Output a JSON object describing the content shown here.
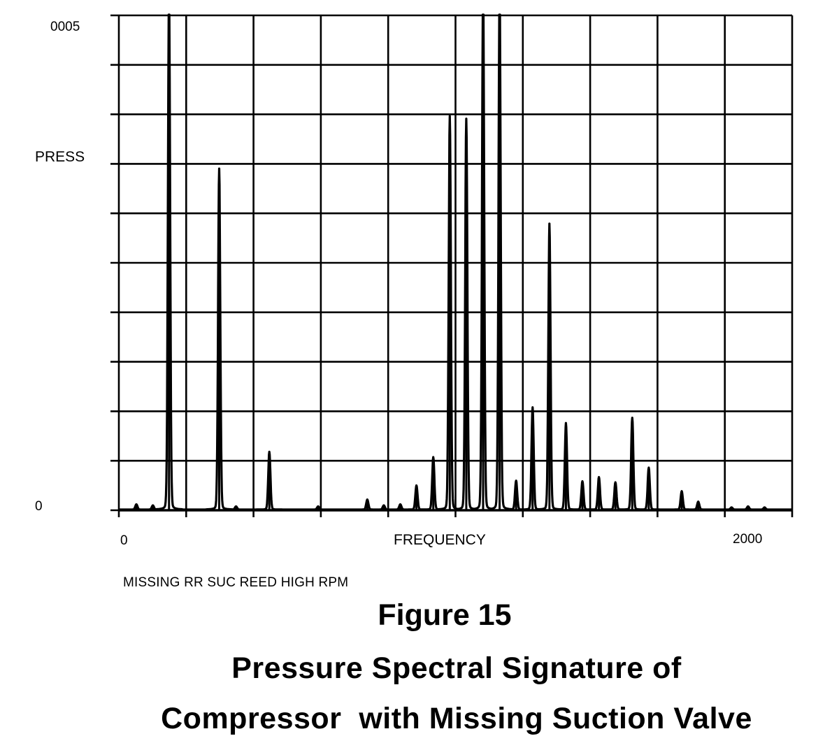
{
  "chart_data": {
    "type": "line",
    "title": "",
    "ylabel": "PRESS",
    "xlabel": "FREQUENCY",
    "x_tick_labels": {
      "min": "0",
      "max": "2000"
    },
    "y_tick_labels": {
      "min": "0",
      "max": "0005"
    },
    "xlim": [
      0,
      2000
    ],
    "ylim": [
      0,
      1
    ],
    "grid": true,
    "peaks": [
      {
        "x": 52,
        "y": 0.01
      },
      {
        "x": 101,
        "y": 0.008
      },
      {
        "x": 149,
        "y": 1.0
      },
      {
        "x": 298,
        "y": 0.65
      },
      {
        "x": 348,
        "y": 0.006
      },
      {
        "x": 447,
        "y": 0.11
      },
      {
        "x": 592,
        "y": 0.006
      },
      {
        "x": 738,
        "y": 0.019
      },
      {
        "x": 787,
        "y": 0.008
      },
      {
        "x": 836,
        "y": 0.01
      },
      {
        "x": 884,
        "y": 0.046
      },
      {
        "x": 934,
        "y": 0.1
      },
      {
        "x": 983,
        "y": 0.75
      },
      {
        "x": 1032,
        "y": 0.745
      },
      {
        "x": 1082,
        "y": 1.0
      },
      {
        "x": 1131,
        "y": 1.0
      },
      {
        "x": 1180,
        "y": 0.055
      },
      {
        "x": 1229,
        "y": 0.195
      },
      {
        "x": 1279,
        "y": 0.545
      },
      {
        "x": 1328,
        "y": 0.165
      },
      {
        "x": 1377,
        "y": 0.054
      },
      {
        "x": 1426,
        "y": 0.062
      },
      {
        "x": 1475,
        "y": 0.052
      },
      {
        "x": 1525,
        "y": 0.175
      },
      {
        "x": 1574,
        "y": 0.08
      },
      {
        "x": 1672,
        "y": 0.035
      },
      {
        "x": 1721,
        "y": 0.015
      },
      {
        "x": 1820,
        "y": 0.004
      },
      {
        "x": 1869,
        "y": 0.006
      },
      {
        "x": 1918,
        "y": 0.004
      }
    ]
  },
  "caption": "MISSING RR SUC REED HIGH RPM",
  "figure": {
    "number": "Figure 15",
    "title_line1": "Pressure Spectral Signature of",
    "title_line2": "Compressor  with Missing Suction Valve"
  }
}
